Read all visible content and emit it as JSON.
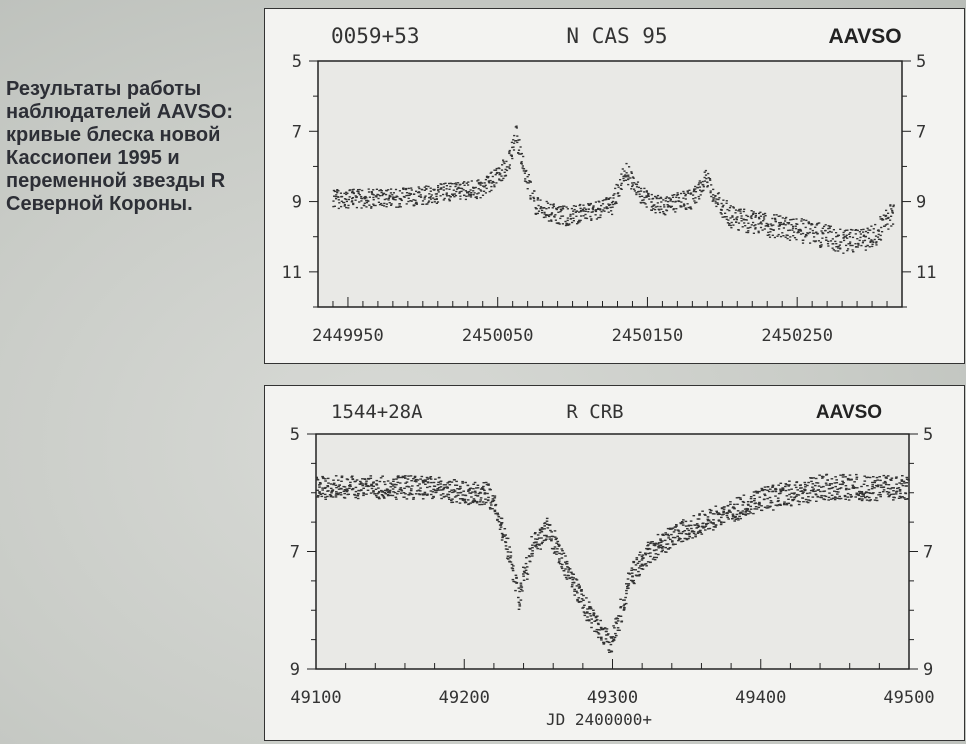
{
  "caption": "Результаты работы наблюдателей AAVSO: кривые блеска новой Кассиопеи 1995 и переменной звезды R Северной Короны.",
  "chart_data": [
    {
      "type": "scatter",
      "title": "N CAS 95",
      "designation": "0059+53",
      "source": "AAVSO",
      "xlabel": "",
      "ylabel": "",
      "xlim": [
        2449930,
        2450320
      ],
      "ylim": [
        5,
        12
      ],
      "y_inverted": true,
      "xticks": [
        2449950,
        2450050,
        2450150,
        2450250
      ],
      "yticks": [
        5,
        7,
        9,
        11
      ],
      "grid": false,
      "series": [
        {
          "x": [
            2449940,
            2449960,
            2449980,
            2450000,
            2450020,
            2450040,
            2450055,
            2450062,
            2450068,
            2450075,
            2450085,
            2450095,
            2450110,
            2450125,
            2450135,
            2450142,
            2450150,
            2450160,
            2450170,
            2450180,
            2450188,
            2450195,
            2450205,
            2450220,
            2450240,
            2450260,
            2450280,
            2450300,
            2450315
          ],
          "y": [
            8.9,
            8.9,
            8.9,
            8.8,
            8.7,
            8.6,
            8.0,
            7.1,
            8.2,
            9.1,
            9.3,
            9.4,
            9.3,
            9.1,
            8.1,
            8.6,
            9.0,
            9.1,
            9.0,
            8.9,
            8.3,
            8.9,
            9.4,
            9.6,
            9.7,
            9.9,
            10.1,
            10.0,
            9.2
          ]
        }
      ]
    },
    {
      "type": "scatter",
      "title": "R CRB",
      "designation": "1544+28A",
      "source": "AAVSO",
      "xlabel": "JD 2400000+",
      "ylabel": "",
      "xlim": [
        49100,
        49500
      ],
      "ylim": [
        5,
        9
      ],
      "y_inverted": true,
      "xticks": [
        49100,
        49200,
        49300,
        49400,
        49500
      ],
      "yticks": [
        5,
        7,
        9
      ],
      "grid": false,
      "series": [
        {
          "x": [
            49100,
            49120,
            49140,
            49160,
            49180,
            49200,
            49215,
            49222,
            49230,
            49236,
            49245,
            49255,
            49262,
            49270,
            49280,
            49290,
            49298,
            49305,
            49312,
            49320,
            49330,
            49340,
            49360,
            49380,
            49400,
            49420,
            49440,
            49460,
            49480,
            49500
          ],
          "y": [
            5.9,
            5.9,
            5.9,
            5.9,
            5.9,
            6.0,
            6.0,
            6.3,
            7.1,
            7.8,
            6.9,
            6.6,
            6.9,
            7.4,
            7.9,
            8.3,
            8.6,
            8.0,
            7.4,
            7.1,
            6.9,
            6.7,
            6.5,
            6.3,
            6.1,
            6.0,
            5.9,
            5.9,
            5.9,
            5.9
          ]
        }
      ]
    }
  ]
}
